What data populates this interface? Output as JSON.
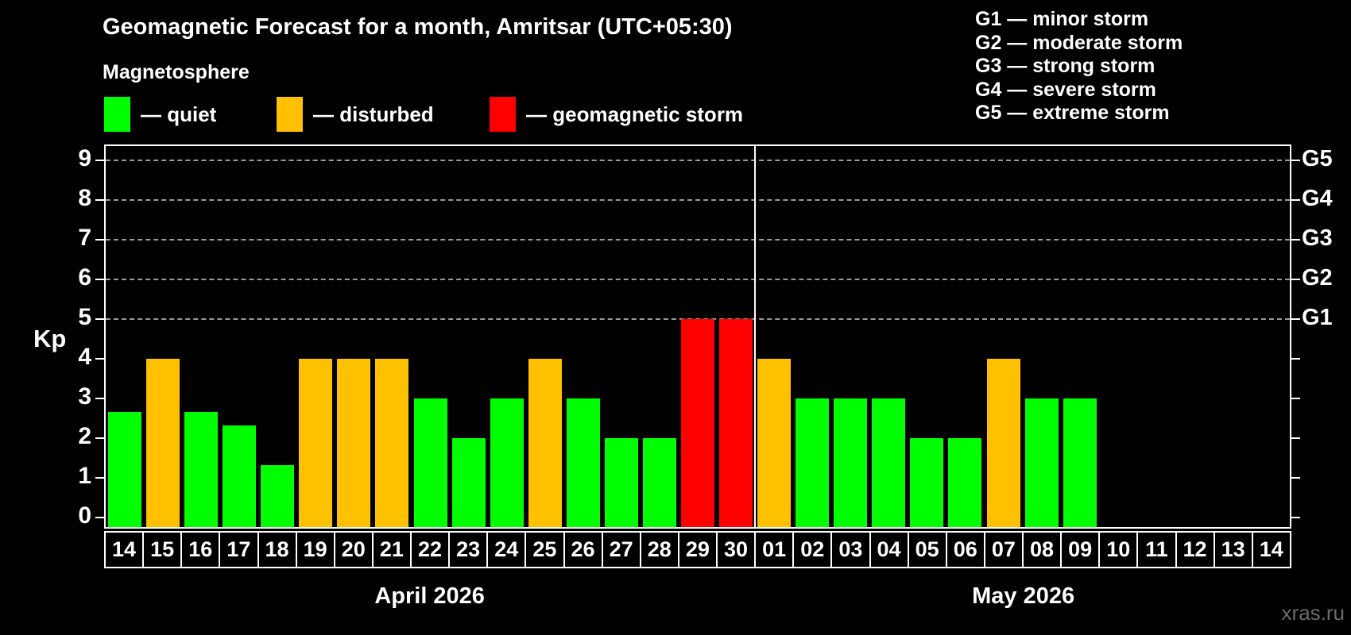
{
  "title": "Geomagnetic Forecast for a month, Amritsar (UTC+05:30)",
  "subtitle": "Magnetosphere",
  "legend": {
    "items": [
      {
        "key": "quiet",
        "label": "— quiet",
        "color": "#00ff00"
      },
      {
        "key": "disturbed",
        "label": "— disturbed",
        "color": "#ffc000"
      },
      {
        "key": "storm",
        "label": "— geomagnetic storm",
        "color": "#ff0000"
      }
    ]
  },
  "g_legend": [
    "G1 — minor storm",
    "G2 — moderate storm",
    "G3 — strong storm",
    "G4 — severe storm",
    "G5 — extreme storm"
  ],
  "watermark": "xras.ru",
  "colors": {
    "background": "#000000",
    "axis": "#ffffff",
    "gridline": "#9a9a9a",
    "watermark": "#6a6a6a",
    "quiet": "#00ff00",
    "disturbed": "#ffc000",
    "storm": "#ff0000"
  },
  "chart_data": {
    "type": "bar",
    "title": "Geomagnetic Forecast for a month, Amritsar (UTC+05:30)",
    "ylabel": "Kp",
    "ylim": [
      0,
      9.4
    ],
    "yticks": [
      0,
      1,
      2,
      3,
      4,
      5,
      6,
      7,
      8,
      9
    ],
    "gridlines_kp": [
      5,
      6,
      7,
      8,
      9
    ],
    "grid": "horizontal dashed at Kp 5-9",
    "legend_position": "top",
    "right_axis_labels": [
      {
        "label": "G1",
        "kp": 5
      },
      {
        "label": "G2",
        "kp": 6
      },
      {
        "label": "G3",
        "kp": 7
      },
      {
        "label": "G4",
        "kp": 8
      },
      {
        "label": "G5",
        "kp": 9
      }
    ],
    "months": [
      {
        "label": "April 2026",
        "days": 17
      },
      {
        "label": "May 2026",
        "days": 14
      }
    ],
    "categories": [
      "14",
      "15",
      "16",
      "17",
      "18",
      "19",
      "20",
      "21",
      "22",
      "23",
      "24",
      "25",
      "26",
      "27",
      "28",
      "29",
      "30",
      "01",
      "02",
      "03",
      "04",
      "05",
      "06",
      "07",
      "08",
      "09",
      "10",
      "11",
      "12",
      "13",
      "14"
    ],
    "values": [
      2.67,
      4,
      2.67,
      2.33,
      1.33,
      4,
      4,
      4,
      3,
      2,
      3,
      4,
      3,
      2,
      2,
      5,
      5,
      4,
      3,
      3,
      3,
      2,
      2,
      4,
      3,
      3,
      null,
      null,
      null,
      null,
      null
    ],
    "condition": [
      "quiet",
      "disturbed",
      "quiet",
      "quiet",
      "quiet",
      "disturbed",
      "disturbed",
      "disturbed",
      "quiet",
      "quiet",
      "quiet",
      "disturbed",
      "quiet",
      "quiet",
      "quiet",
      "storm",
      "storm",
      "disturbed",
      "quiet",
      "quiet",
      "quiet",
      "quiet",
      "quiet",
      "disturbed",
      "quiet",
      "quiet",
      null,
      null,
      null,
      null,
      null
    ],
    "condition_colors": {
      "quiet": "#00ff00",
      "disturbed": "#ffc000",
      "storm": "#ff0000"
    }
  }
}
